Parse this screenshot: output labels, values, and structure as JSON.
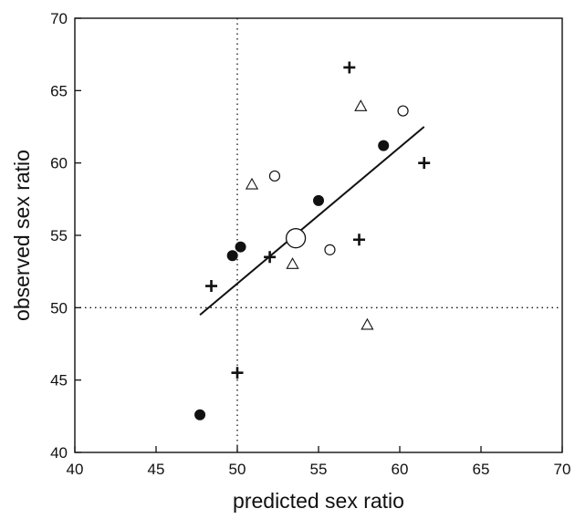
{
  "chart_data": {
    "type": "scatter",
    "title": "",
    "xlabel": "predicted sex ratio",
    "ylabel": "observed sex ratio",
    "xlim": [
      40,
      70
    ],
    "ylim": [
      40,
      70
    ],
    "xticks": [
      40,
      45,
      50,
      55,
      60,
      65,
      70
    ],
    "yticks": [
      40,
      45,
      50,
      55,
      60,
      65,
      70
    ],
    "grid": false,
    "legend": "none",
    "reference_lines": [
      {
        "orientation": "vertical",
        "value": 50,
        "style": "dotted"
      },
      {
        "orientation": "horizontal",
        "value": 50,
        "style": "dotted"
      }
    ],
    "regression_line": {
      "x": [
        47.7,
        61.5
      ],
      "y": [
        49.5,
        62.5
      ]
    },
    "series": [
      {
        "marker": "filled-circle",
        "points": [
          {
            "x": 47.7,
            "y": 42.6
          },
          {
            "x": 49.7,
            "y": 53.6
          },
          {
            "x": 50.2,
            "y": 54.2
          },
          {
            "x": 55.0,
            "y": 57.4
          },
          {
            "x": 59.0,
            "y": 61.2
          }
        ]
      },
      {
        "marker": "open-circle",
        "points": [
          {
            "x": 52.3,
            "y": 59.1
          },
          {
            "x": 55.7,
            "y": 54.0
          },
          {
            "x": 60.2,
            "y": 63.6
          }
        ]
      },
      {
        "marker": "large-open-circle",
        "points": [
          {
            "x": 53.6,
            "y": 54.8
          }
        ]
      },
      {
        "marker": "open-triangle",
        "points": [
          {
            "x": 50.9,
            "y": 58.5
          },
          {
            "x": 53.4,
            "y": 53.0
          },
          {
            "x": 57.6,
            "y": 63.9
          },
          {
            "x": 58.0,
            "y": 48.8
          }
        ]
      },
      {
        "marker": "plus",
        "points": [
          {
            "x": 48.4,
            "y": 51.5
          },
          {
            "x": 50.0,
            "y": 45.5
          },
          {
            "x": 52.0,
            "y": 53.5
          },
          {
            "x": 56.9,
            "y": 66.6
          },
          {
            "x": 57.5,
            "y": 54.7
          },
          {
            "x": 61.5,
            "y": 60.0
          }
        ]
      }
    ],
    "colors": {
      "ink": "#111111",
      "background": "#ffffff"
    }
  }
}
